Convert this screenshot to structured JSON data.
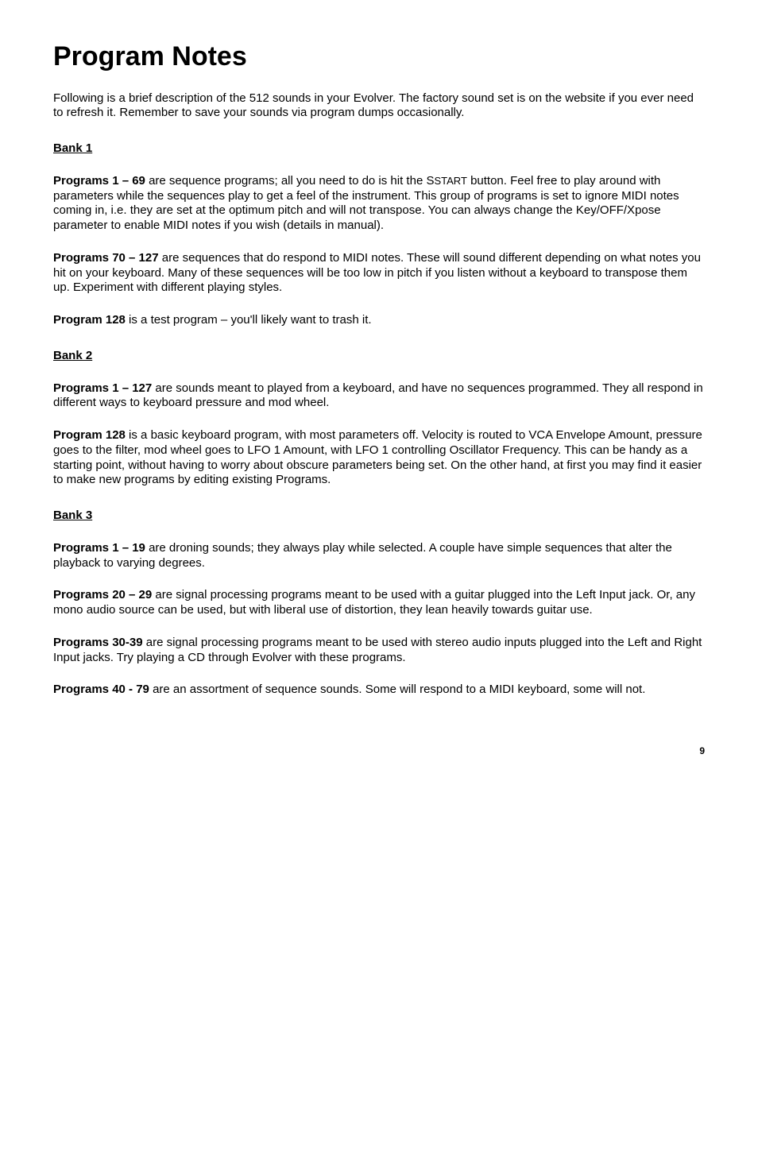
{
  "title": "Program Notes",
  "intro": "Following is a brief description of the 512 sounds in your Evolver. The factory sound set is on the website if you ever need to refresh it. Remember to save your sounds via program dumps occasionally.",
  "bank1": {
    "heading": "Bank 1",
    "p1_lead": "Programs 1 – 69",
    "p1_body_a": " are sequence programs; all you need to do is hit the ",
    "p1_start": "START",
    "p1_body_b": " button. Feel free to play around with parameters while the sequences play to get a feel of the instrument. This group of programs is set to ignore MIDI notes coming in, i.e. they are set at the optimum pitch and will not transpose. You can always change the Key/OFF/Xpose parameter to enable MIDI notes if you wish (details in manual).",
    "p2_lead": "Programs 70 – 127",
    "p2_body": " are sequences that do respond to MIDI notes. These will sound different depending on what notes you hit on your keyboard. Many of these sequences will be too low in pitch if you listen without a keyboard to transpose them up. Experiment with different playing styles.",
    "p3_lead": "Program 128",
    "p3_body": " is a test program – you'll likely want to trash it."
  },
  "bank2": {
    "heading": "Bank 2",
    "p1_lead": "Programs 1 – 127",
    "p1_body": " are sounds meant to played from a keyboard, and have no sequences programmed. They all respond in different ways to keyboard pressure and mod wheel.",
    "p2_lead": "Program 128",
    "p2_body": " is a basic keyboard program, with most parameters off. Velocity is routed to VCA Envelope Amount, pressure goes to the filter, mod wheel goes to LFO 1 Amount, with LFO 1 controlling Oscillator Frequency. This can be handy as a starting point, without having to worry about obscure parameters being set. On the other hand, at first you may find it easier to make new programs by editing existing Programs."
  },
  "bank3": {
    "heading": "Bank 3",
    "p1_lead": "Programs 1 – 19",
    "p1_body": " are droning sounds; they always play while selected. A couple have simple sequences that alter the playback to varying degrees.",
    "p2_lead": "Programs 20 – 29",
    "p2_body": "  are signal processing programs meant to be used with a guitar plugged into the Left Input jack. Or, any mono audio source can be used, but with liberal use of distortion, they lean heavily towards guitar use.",
    "p3_lead": "Programs 30-39",
    "p3_body": "  are signal processing programs meant to be used with stereo audio inputs plugged into the Left and Right Input jacks. Try playing a CD through Evolver with these programs.",
    "p4_lead": "Programs 40 - 79",
    "p4_body": "  are an assortment of sequence sounds. Some will respond to a MIDI keyboard, some will not."
  },
  "page_number": "9"
}
